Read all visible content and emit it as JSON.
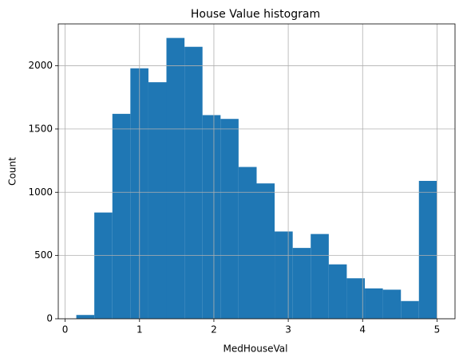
{
  "chart_data": {
    "type": "histogram",
    "title": "House Value histogram",
    "x_label": "MedHouseVal",
    "y_label": "Count",
    "bins": [
      0.15,
      0.392,
      0.635,
      0.877,
      1.12,
      1.362,
      1.605,
      1.847,
      2.09,
      2.332,
      2.575,
      2.817,
      3.06,
      3.302,
      3.545,
      3.787,
      4.03,
      4.272,
      4.515,
      4.757,
      5.0
    ],
    "counts": [
      30,
      840,
      1620,
      1980,
      1870,
      2220,
      2150,
      1610,
      1580,
      1200,
      1070,
      690,
      560,
      670,
      430,
      320,
      240,
      230,
      140,
      1090
    ],
    "color": "#1f77b4",
    "xlim": [
      -0.0925,
      5.2425
    ],
    "xticks": [
      0,
      1,
      2,
      3,
      4,
      5
    ],
    "ylim": [
      0,
      2331
    ],
    "yticks": [
      0,
      500,
      1000,
      1500,
      2000
    ],
    "grid": true
  }
}
